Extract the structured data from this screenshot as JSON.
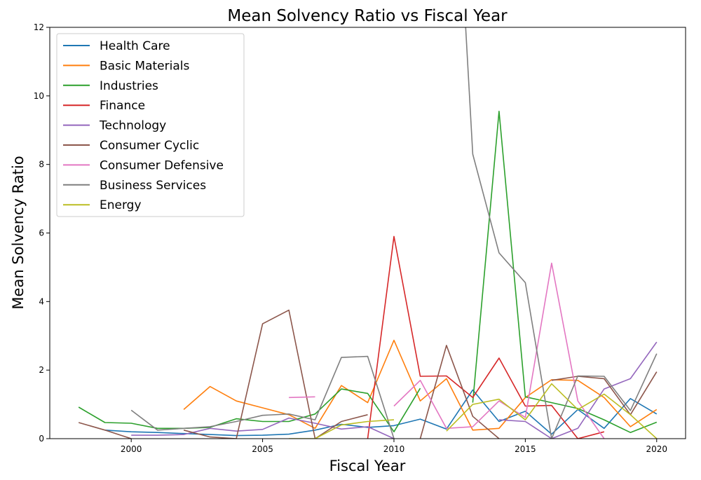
{
  "chart_data": {
    "type": "line",
    "title": "Mean Solvency Ratio vs Fiscal Year",
    "xlabel": "Fiscal Year",
    "ylabel": "Mean Solvency Ratio",
    "xlim": [
      1996.9,
      2021.1
    ],
    "ylim": [
      0,
      12
    ],
    "xticks": [
      2000,
      2005,
      2010,
      2015,
      2020
    ],
    "yticks": [
      0,
      2,
      4,
      6,
      8,
      10,
      12
    ],
    "grid": false,
    "legend_position": "top-left",
    "series": [
      {
        "name": "Health Care",
        "color": "#1f77b4",
        "x": [
          1999,
          2000,
          2001,
          2002,
          2003,
          2004,
          2005,
          2006,
          2007,
          2008,
          2009,
          2010,
          2011,
          2012,
          2013,
          2014,
          2015,
          2016,
          2017,
          2018,
          2019,
          2020
        ],
        "y": [
          0.25,
          0.2,
          0.18,
          0.15,
          0.12,
          0.09,
          0.1,
          0.13,
          0.25,
          0.42,
          0.33,
          0.38,
          0.57,
          0.28,
          1.42,
          0.5,
          0.8,
          0.13,
          0.85,
          0.3,
          1.17,
          0.72
        ]
      },
      {
        "name": "Basic Materials",
        "color": "#ff7f0e",
        "x": [
          2002,
          2003,
          2004,
          2005,
          2006,
          2007,
          2008,
          2009,
          2010,
          2011,
          2012,
          2013,
          2014,
          2015,
          2016,
          2017,
          2018,
          2019,
          2020
        ],
        "y": [
          0.85,
          1.52,
          1.1,
          0.9,
          0.7,
          0.3,
          1.55,
          1.05,
          2.87,
          1.1,
          1.75,
          0.25,
          0.3,
          1.2,
          1.72,
          1.7,
          1.2,
          0.35,
          0.85
        ]
      },
      {
        "name": "Industries",
        "color": "#2ca02c",
        "x": [
          1998,
          1999,
          2000,
          2001,
          2002,
          2003,
          2004,
          2005,
          2006,
          2007,
          2008,
          2009,
          2010,
          2011,
          2012,
          2013,
          2014,
          2015,
          2016,
          2017,
          2018,
          2019,
          2020
        ],
        "y": [
          0.92,
          0.47,
          0.45,
          0.3,
          0.3,
          0.33,
          0.58,
          0.5,
          0.5,
          0.72,
          1.45,
          1.32,
          0.2,
          1.47,
          null,
          1.05,
          9.55,
          1.22,
          1.05,
          0.88,
          0.55,
          0.18,
          0.48
        ]
      },
      {
        "name": "Finance",
        "color": "#d62728",
        "x": [
          2009,
          2010,
          2011,
          2012,
          2013,
          2014,
          2015,
          2016,
          2017,
          2018,
          2019,
          2020
        ],
        "y": [
          0,
          5.9,
          1.82,
          1.83,
          1.2,
          2.35,
          0.95,
          0.97,
          0,
          0.2,
          null,
          0.75
        ]
      },
      {
        "name": "Technology",
        "color": "#9467bd",
        "x": [
          2000,
          2001,
          2002,
          2003,
          2004,
          2005,
          2006,
          2007,
          2008,
          2009,
          2010,
          2011,
          2012,
          2013,
          2014,
          2015,
          2016,
          2017,
          2018,
          2019,
          2020
        ],
        "y": [
          0.1,
          0.1,
          0.12,
          0.3,
          0.22,
          0.27,
          0.6,
          0.45,
          0.28,
          0.35,
          0,
          null,
          1.17,
          null,
          0.55,
          0.5,
          0,
          0.3,
          1.45,
          1.75,
          2.82
        ]
      },
      {
        "name": "Consumer Cyclic",
        "color": "#8c564b",
        "x": [
          1998,
          1999,
          2000,
          2001,
          2002,
          2003,
          2004,
          2005,
          2006,
          2007,
          2008,
          2009,
          2010,
          2011,
          2012,
          2013,
          2014,
          2015,
          2016,
          2017,
          2018,
          2019,
          2020
        ],
        "y": [
          0.47,
          0.25,
          0,
          null,
          0.25,
          0.05,
          0,
          3.35,
          3.75,
          0,
          0.5,
          0.7,
          null,
          0,
          2.72,
          0.65,
          0,
          null,
          1.7,
          1.82,
          1.75,
          0.7,
          1.95
        ]
      },
      {
        "name": "Consumer Defensive",
        "color": "#e377c2",
        "x": [
          2006,
          2007,
          2008,
          2009,
          2010,
          2011,
          2012,
          2013,
          2014,
          2015,
          2016,
          2017,
          2018,
          2019,
          2020
        ],
        "y": [
          1.2,
          1.22,
          null,
          null,
          0.95,
          1.7,
          0.3,
          0.35,
          1.1,
          0.62,
          5.12,
          1.1,
          0,
          null,
          1.95
        ]
      },
      {
        "name": "Business Services",
        "color": "#7f7f7f",
        "x": [
          2000,
          2001,
          2002,
          2003,
          2004,
          2005,
          2006,
          2007,
          2008,
          2009,
          2010,
          2011,
          2012,
          2013,
          2014,
          2015,
          2016,
          2017,
          2018,
          2019,
          2020
        ],
        "y": [
          0.83,
          0.25,
          0.3,
          0.35,
          0.5,
          0.68,
          0.72,
          0.55,
          2.37,
          2.4,
          0,
          null,
          22,
          8.3,
          5.42,
          4.55,
          0,
          1.83,
          1.82,
          0.82,
          2.48
        ]
      },
      {
        "name": "Energy",
        "color": "#bcbd22",
        "x": [
          2006,
          2007,
          2008,
          2009,
          2010,
          2011,
          2012,
          2013,
          2014,
          2015,
          2016,
          2017,
          2018,
          2019,
          2020
        ],
        "y": [
          0,
          0,
          0.4,
          0.5,
          0.55,
          null,
          0.22,
          1.0,
          1.15,
          0.55,
          1.6,
          0.85,
          1.3,
          0.7,
          0
        ]
      }
    ]
  }
}
